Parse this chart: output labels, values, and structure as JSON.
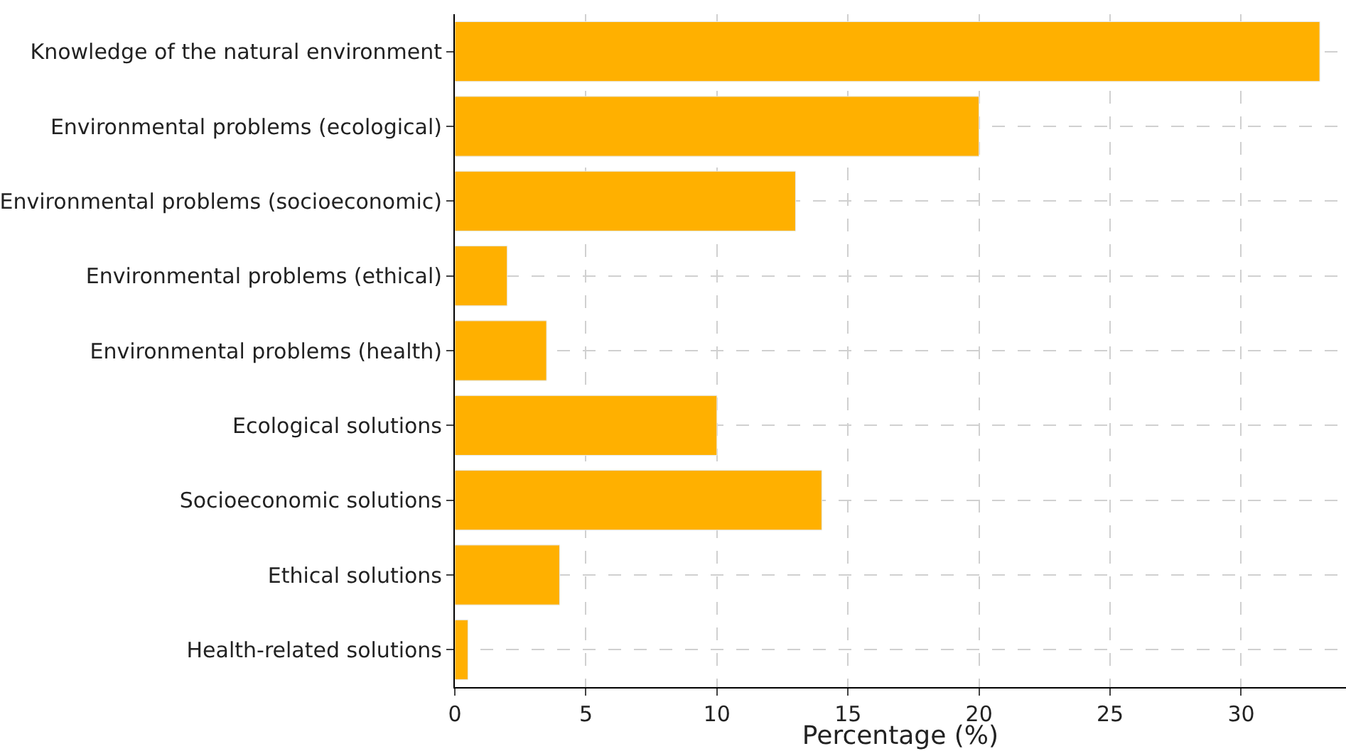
{
  "chart_data": {
    "type": "bar",
    "orientation": "horizontal",
    "xlabel": "Percentage (%)",
    "categories": [
      "Knowledge of the natural environment",
      "Environmental problems (ecological)",
      "Environmental problems (socioeconomic)",
      "Environmental problems (ethical)",
      "Environmental problems (health)",
      "Ecological solutions",
      "Socioeconomic solutions",
      "Ethical solutions",
      "Health-related solutions"
    ],
    "values": [
      33,
      20,
      13,
      2,
      3.5,
      10,
      14,
      4,
      0.5
    ],
    "color": "#ffb000",
    "xlim": [
      0,
      34
    ],
    "xticks": [
      0,
      5,
      10,
      15,
      20,
      25,
      30
    ],
    "grid": true
  }
}
